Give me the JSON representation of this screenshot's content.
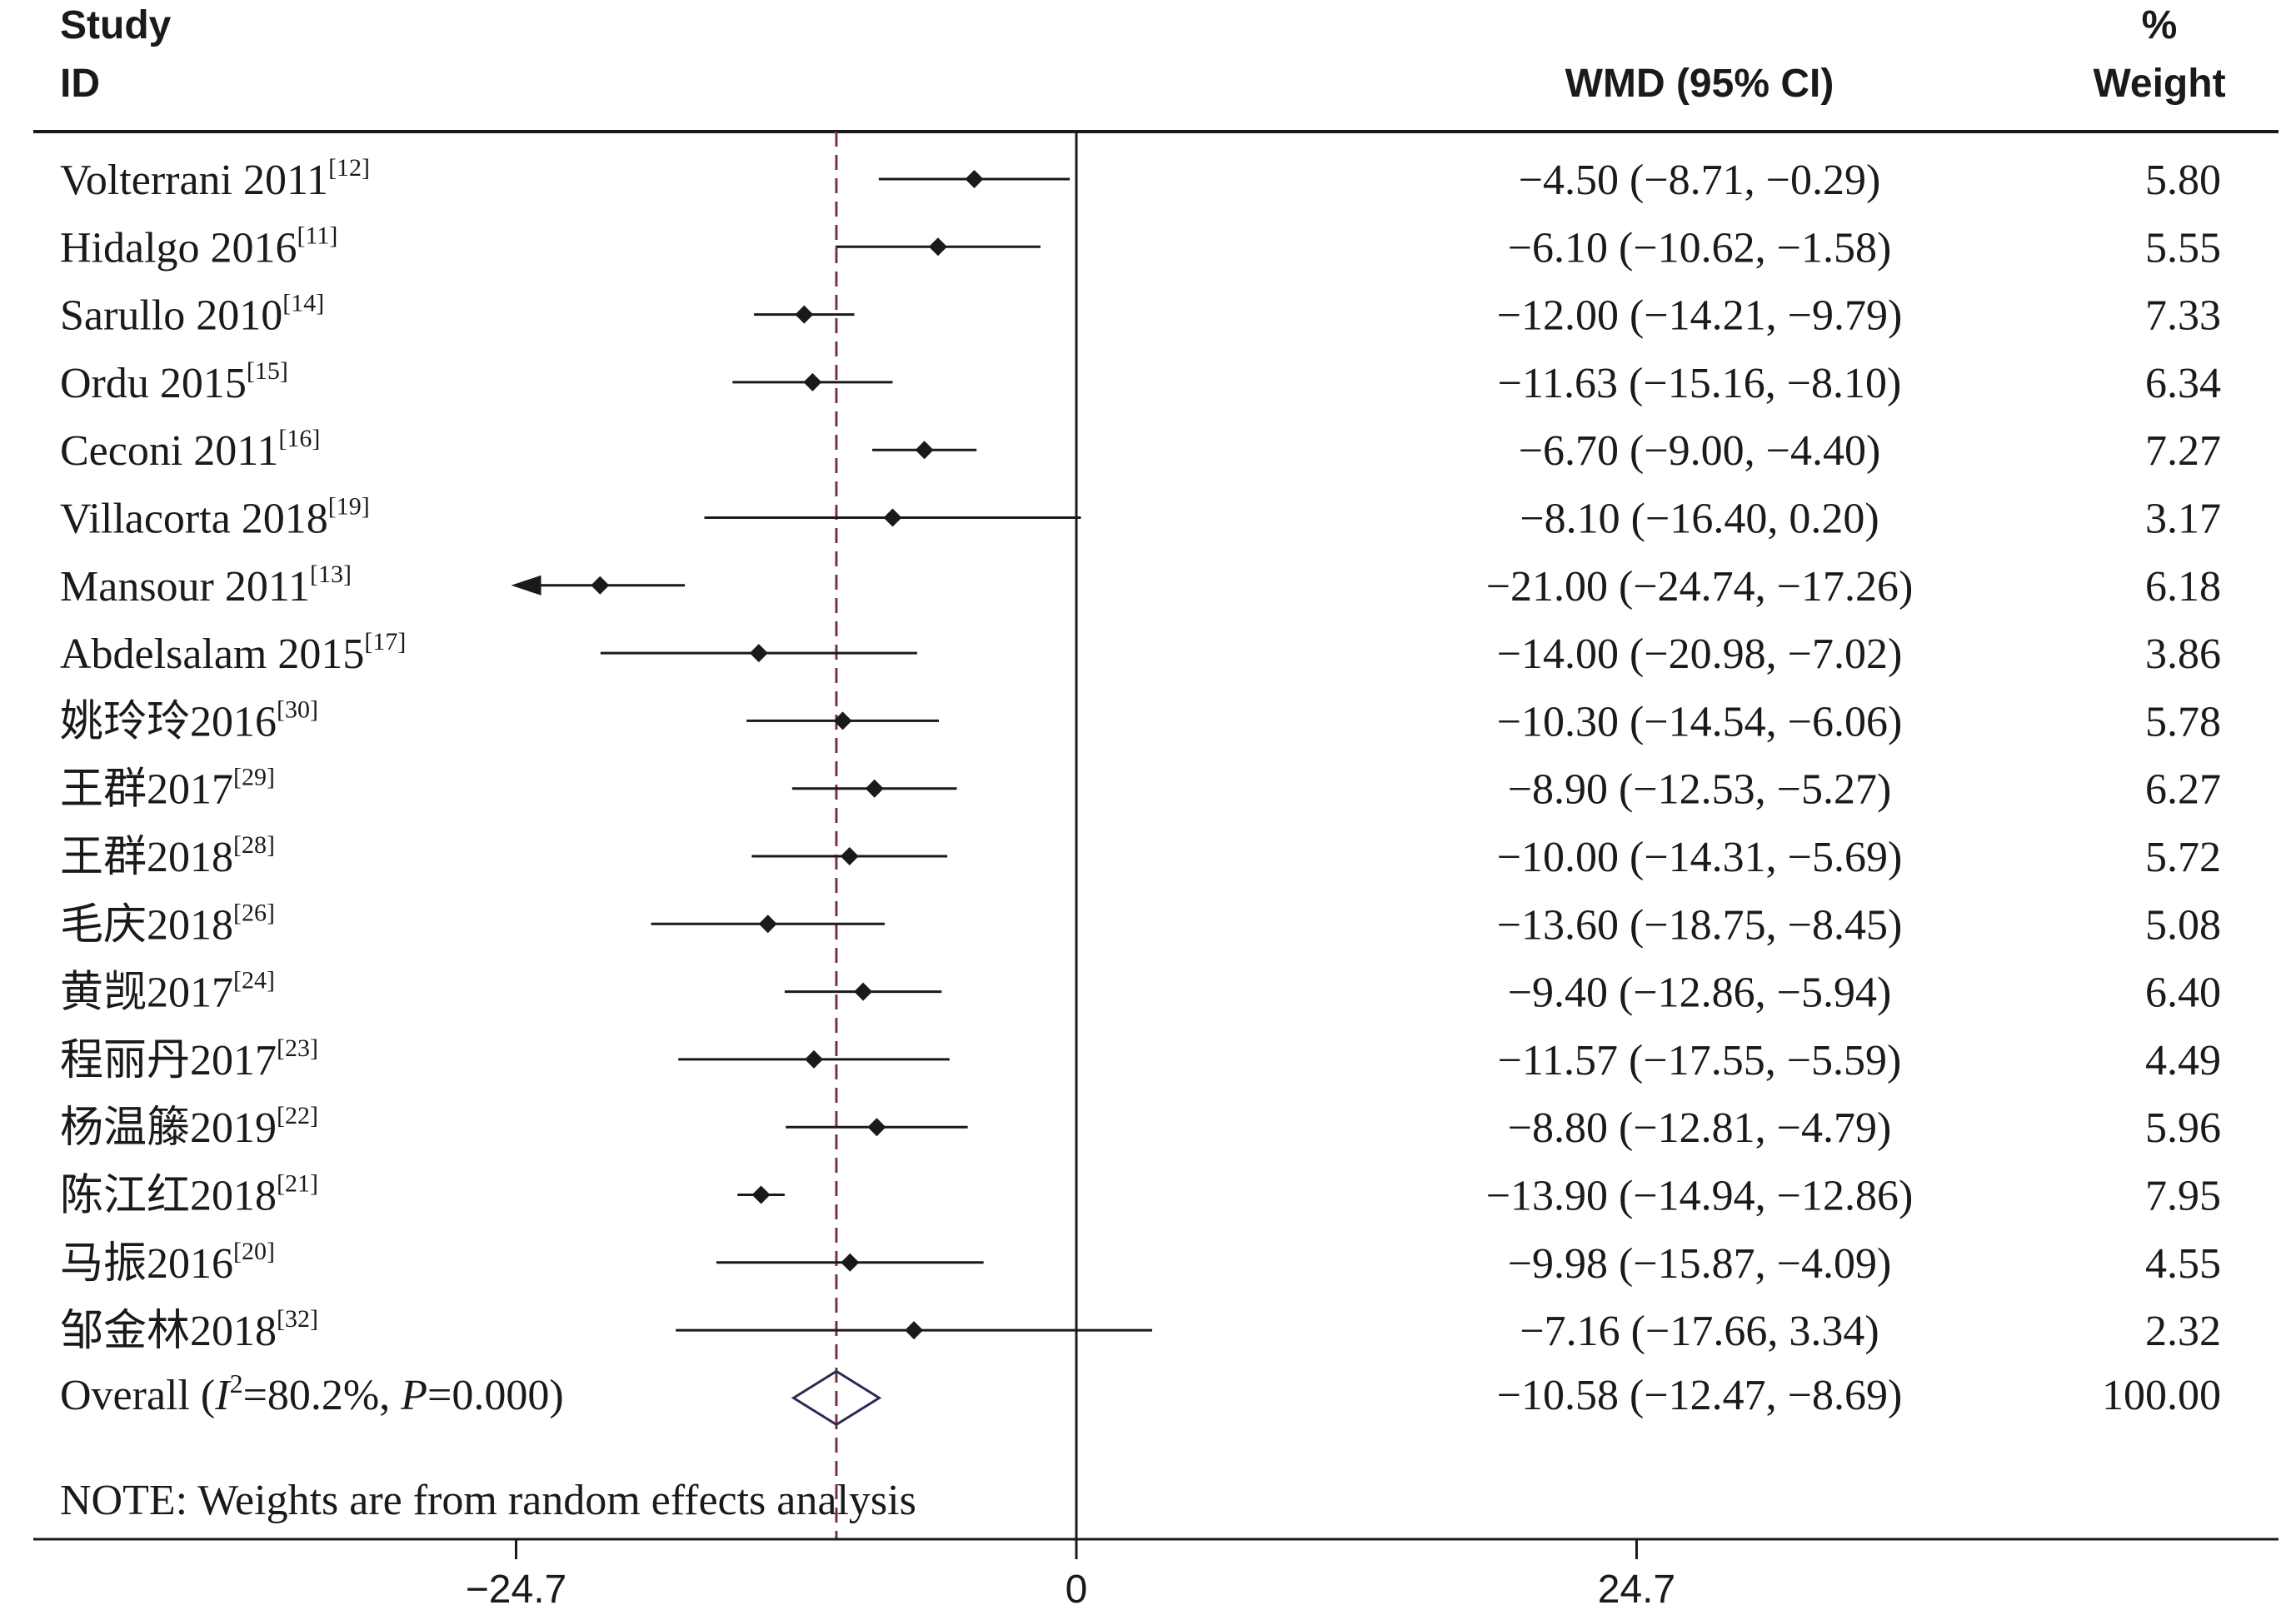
{
  "chart_data": {
    "type": "forest",
    "headers": {
      "study_line1": "Study",
      "study_line2": "ID",
      "effect": "WMD (95% CI)",
      "weight_line1": "%",
      "weight_line2": "Weight"
    },
    "studies": [
      {
        "label": "Volterrani 2011",
        "ref": "[12]",
        "wmd": -4.5,
        "lo": -8.71,
        "hi": -0.29,
        "ci_text": "−4.50 (−8.71, −0.29)",
        "weight": "5.80"
      },
      {
        "label": "Hidalgo 2016",
        "ref": "[11]",
        "wmd": -6.1,
        "lo": -10.62,
        "hi": -1.58,
        "ci_text": "−6.10 (−10.62, −1.58)",
        "weight": "5.55"
      },
      {
        "label": "Sarullo 2010",
        "ref": "[14]",
        "wmd": -12.0,
        "lo": -14.21,
        "hi": -9.79,
        "ci_text": "−12.00 (−14.21, −9.79)",
        "weight": "7.33"
      },
      {
        "label": "Ordu 2015",
        "ref": "[15]",
        "wmd": -11.63,
        "lo": -15.16,
        "hi": -8.1,
        "ci_text": "−11.63 (−15.16, −8.10)",
        "weight": "6.34"
      },
      {
        "label": "Ceconi 2011",
        "ref": "[16]",
        "wmd": -6.7,
        "lo": -9.0,
        "hi": -4.4,
        "ci_text": "−6.70 (−9.00, −4.40)",
        "weight": "7.27"
      },
      {
        "label": "Villacorta 2018",
        "ref": "[19]",
        "wmd": -8.1,
        "lo": -16.4,
        "hi": 0.2,
        "ci_text": "−8.10 (−16.40, 0.20)",
        "weight": "3.17"
      },
      {
        "label": "Mansour 2011",
        "ref": "[13]",
        "wmd": -21.0,
        "lo": -24.74,
        "hi": -17.26,
        "ci_text": "−21.00 (−24.74, −17.26)",
        "weight": "6.18",
        "clipped_low": true
      },
      {
        "label": "Abdelsalam 2015",
        "ref": "[17]",
        "wmd": -14.0,
        "lo": -20.98,
        "hi": -7.02,
        "ci_text": "−14.00 (−20.98, −7.02)",
        "weight": "3.86"
      },
      {
        "label": "姚玲玲2016",
        "ref": "[30]",
        "wmd": -10.3,
        "lo": -14.54,
        "hi": -6.06,
        "ci_text": "−10.30 (−14.54, −6.06)",
        "weight": "5.78"
      },
      {
        "label": "王群2017",
        "ref": "[29]",
        "wmd": -8.9,
        "lo": -12.53,
        "hi": -5.27,
        "ci_text": "−8.90 (−12.53, −5.27)",
        "weight": "6.27"
      },
      {
        "label": "王群2018",
        "ref": "[28]",
        "wmd": -10.0,
        "lo": -14.31,
        "hi": -5.69,
        "ci_text": "−10.00 (−14.31, −5.69)",
        "weight": "5.72"
      },
      {
        "label": "毛庆2018",
        "ref": "[26]",
        "wmd": -13.6,
        "lo": -18.75,
        "hi": -8.45,
        "ci_text": "−13.60 (−18.75, −8.45)",
        "weight": "5.08"
      },
      {
        "label": "黄觊2017",
        "ref": "[24]",
        "wmd": -9.4,
        "lo": -12.86,
        "hi": -5.94,
        "ci_text": "−9.40 (−12.86, −5.94)",
        "weight": "6.40"
      },
      {
        "label": "程丽丹2017",
        "ref": "[23]",
        "wmd": -11.57,
        "lo": -17.55,
        "hi": -5.59,
        "ci_text": "−11.57 (−17.55, −5.59)",
        "weight": "4.49"
      },
      {
        "label": "杨温籐2019",
        "ref": "[22]",
        "wmd": -8.8,
        "lo": -12.81,
        "hi": -4.79,
        "ci_text": "−8.80 (−12.81, −4.79)",
        "weight": "5.96"
      },
      {
        "label": "陈江红2018",
        "ref": "[21]",
        "wmd": -13.9,
        "lo": -14.94,
        "hi": -12.86,
        "ci_text": "−13.90 (−14.94, −12.86)",
        "weight": "7.95"
      },
      {
        "label": "马振2016",
        "ref": "[20]",
        "wmd": -9.98,
        "lo": -15.87,
        "hi": -4.09,
        "ci_text": "−9.98 (−15.87, −4.09)",
        "weight": "4.55"
      },
      {
        "label": "邹金林2018",
        "ref": "[32]",
        "wmd": -7.16,
        "lo": -17.66,
        "hi": 3.34,
        "ci_text": "−7.16 (−17.66, 3.34)",
        "weight": "2.32"
      }
    ],
    "overall": {
      "label_prefix": "Overall  (",
      "i2_symbol": "I",
      "i2_sup": "2",
      "i2_value": "=80.2%, ",
      "p_symbol": "P",
      "p_value": "=0.000)",
      "wmd": -10.58,
      "lo": -12.47,
      "hi": -8.69,
      "ci_text": "−10.58 (−12.47, −8.69)",
      "weight": "100.00"
    },
    "note": "NOTE: Weights are from random effects analysis",
    "x_ticks": [
      {
        "value": -24.7,
        "label": "−24.7"
      },
      {
        "value": 0,
        "label": "0"
      },
      {
        "value": 24.7,
        "label": "24.7"
      }
    ],
    "xlim": [
      -24.7,
      24.7
    ],
    "null_line": 0,
    "colors": {
      "ink": "#1a1a1a",
      "overall_line": "#7a3045",
      "diamond": "#2b2b55"
    }
  }
}
